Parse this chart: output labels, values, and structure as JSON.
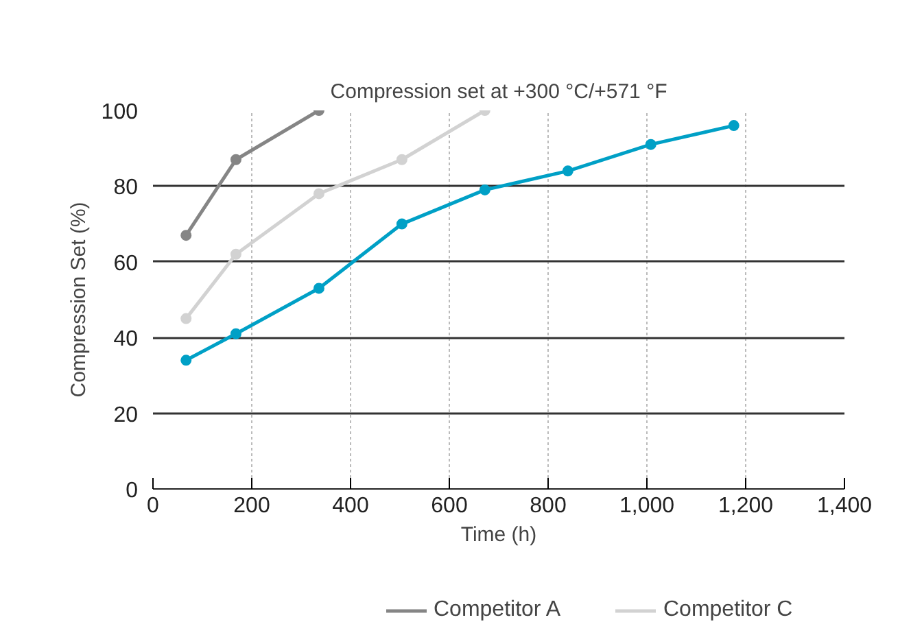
{
  "chart_data": {
    "type": "line",
    "title": "Compression set at +300 °C/+571 °F",
    "xlabel": "Time (h)",
    "ylabel": "Compression Set (%)",
    "xlim": [
      0,
      1400
    ],
    "xticks": [
      0,
      200,
      400,
      600,
      800,
      {
        "value": 1000,
        "label": "1,000"
      },
      {
        "value": 1200,
        "label": "1,200"
      },
      {
        "value": 1400,
        "label": "1,400"
      }
    ],
    "ylim": [
      0,
      100
    ],
    "yticks": [
      0,
      20,
      40,
      60,
      80,
      100
    ],
    "grid": true,
    "legend": "bottom",
    "marker": "circle",
    "line_style": "solid",
    "series": [
      {
        "color": "#00a0c6",
        "x": [
          67,
          168,
          336,
          504,
          672,
          840,
          1008,
          1176
        ],
        "values": [
          34,
          41,
          53,
          70,
          79,
          84,
          91,
          96
        ]
      },
      {
        "name": "Competitor A",
        "color": "#858585",
        "x": [
          67,
          168,
          336
        ],
        "values": [
          67,
          87,
          100
        ]
      },
      {
        "name": "Competitor C",
        "color": "#d2d2d2",
        "x": [
          67,
          168,
          336,
          504,
          672
        ],
        "values": [
          45,
          62,
          78,
          87,
          100
        ]
      }
    ]
  }
}
